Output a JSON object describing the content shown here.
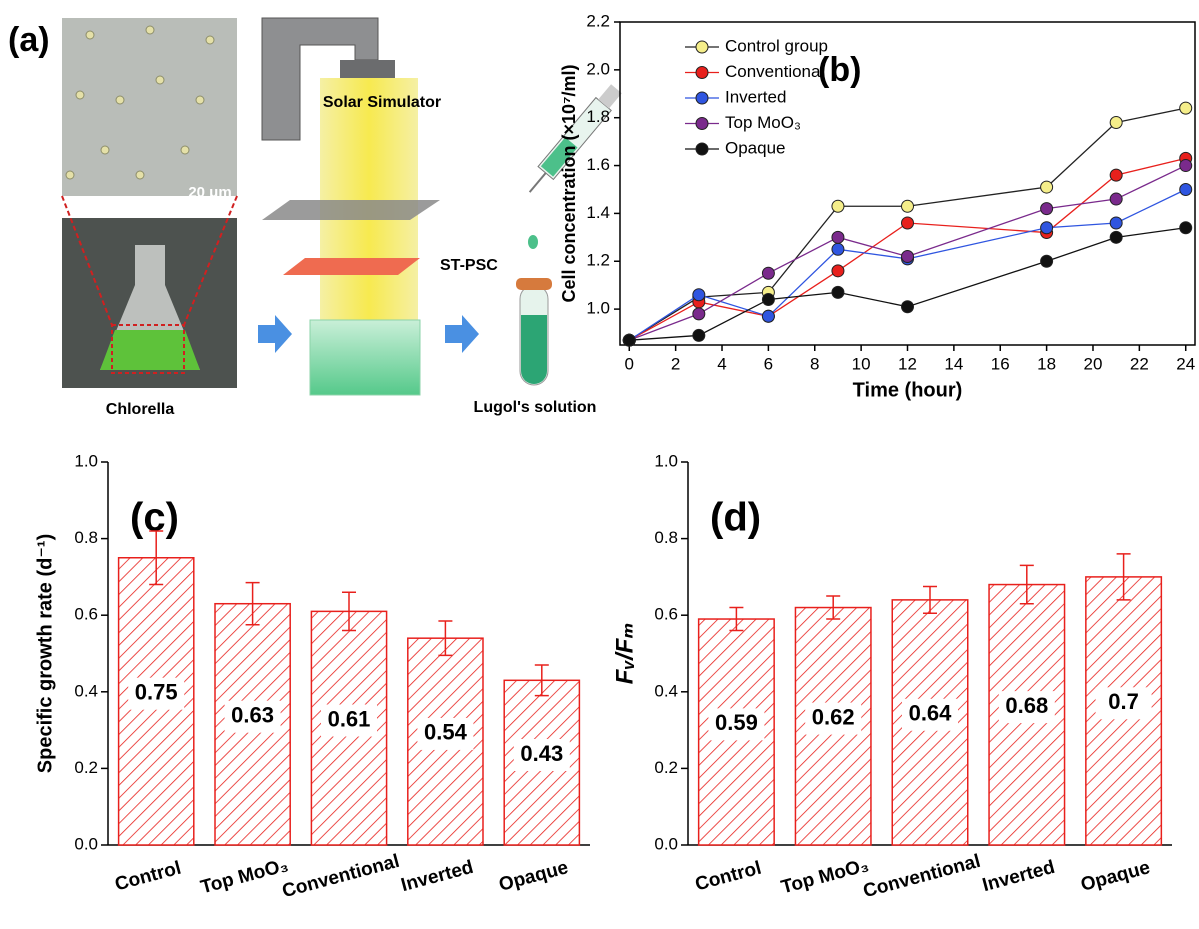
{
  "panel_a": {
    "panel_label": "(a)",
    "scale_bar": "20 μm",
    "specimen": "Chlorella",
    "simulator": "Solar Simulator",
    "device": "ST-PSC",
    "reagent": "Lugol's solution"
  },
  "chart_data": [
    {
      "type": "line",
      "panel_label": "(b)",
      "x_label": "Time (hour)",
      "y_label": "Cell concentration (×10⁷/ml)",
      "x": [
        0,
        3,
        6,
        9,
        12,
        18,
        21,
        24
      ],
      "xlim": [
        -0.4,
        24.4
      ],
      "xticks": [
        0,
        2,
        4,
        6,
        8,
        10,
        12,
        14,
        16,
        18,
        20,
        22,
        24
      ],
      "ylim": [
        0.85,
        2.2
      ],
      "yticks": [
        {
          "value": 1,
          "label": "1.0"
        },
        1.2,
        1.4,
        1.6,
        1.8,
        {
          "value": 2,
          "label": "2.0"
        },
        2.2
      ],
      "legend": "top-left",
      "series": [
        {
          "name": "Control group",
          "color": "#f5ee8a",
          "values": [
            0.87,
            1.05,
            1.07,
            1.43,
            1.43,
            1.51,
            1.78,
            1.84
          ]
        },
        {
          "name": "Conventional",
          "color": "#e8201c",
          "values": [
            0.87,
            1.03,
            0.97,
            1.16,
            1.36,
            1.32,
            1.56,
            1.63
          ]
        },
        {
          "name": "Inverted",
          "color": "#2f55e0",
          "values": [
            0.87,
            1.06,
            0.97,
            1.25,
            1.21,
            1.34,
            1.36,
            1.5
          ]
        },
        {
          "name": "Top MoO₃",
          "color": "#7a2a8c",
          "values": [
            0.87,
            0.98,
            1.15,
            1.3,
            1.22,
            1.42,
            1.46,
            1.6
          ]
        },
        {
          "name": "Opaque",
          "color": "#111111",
          "values": [
            0.87,
            0.89,
            1.04,
            1.07,
            1.01,
            1.2,
            1.3,
            1.34
          ]
        }
      ]
    },
    {
      "type": "bar",
      "panel_label": "(c)",
      "y_label": "Specific  growth rate (d⁻¹)",
      "color": "#e8201c",
      "categories": [
        "Control",
        "Top MoO₃",
        "Conventional",
        "Inverted",
        "Opaque"
      ],
      "values": [
        0.75,
        0.63,
        0.61,
        0.54,
        0.43
      ],
      "errors": [
        0.07,
        0.055,
        0.05,
        0.045,
        0.04
      ],
      "ylim": [
        0,
        1
      ],
      "yticks": [
        {
          "value": 0,
          "label": "0.0"
        },
        0.2,
        0.4,
        0.6,
        0.8,
        {
          "value": 1,
          "label": "1.0"
        }
      ]
    },
    {
      "type": "bar",
      "panel_label": "(d)",
      "y_label": "Fᵥ/Fₘ",
      "color": "#e8201c",
      "categories": [
        "Control",
        "Top MoO₃",
        "Conventional",
        "Inverted",
        "Opaque"
      ],
      "values": [
        0.59,
        0.62,
        0.64,
        0.68,
        0.7
      ],
      "errors": [
        0.03,
        0.03,
        0.035,
        0.05,
        0.06
      ],
      "ylim": [
        0,
        1
      ],
      "yticks": [
        {
          "value": 0,
          "label": "0.0"
        },
        0.2,
        0.4,
        0.6,
        0.8,
        {
          "value": 1,
          "label": "1.0"
        }
      ]
    }
  ]
}
